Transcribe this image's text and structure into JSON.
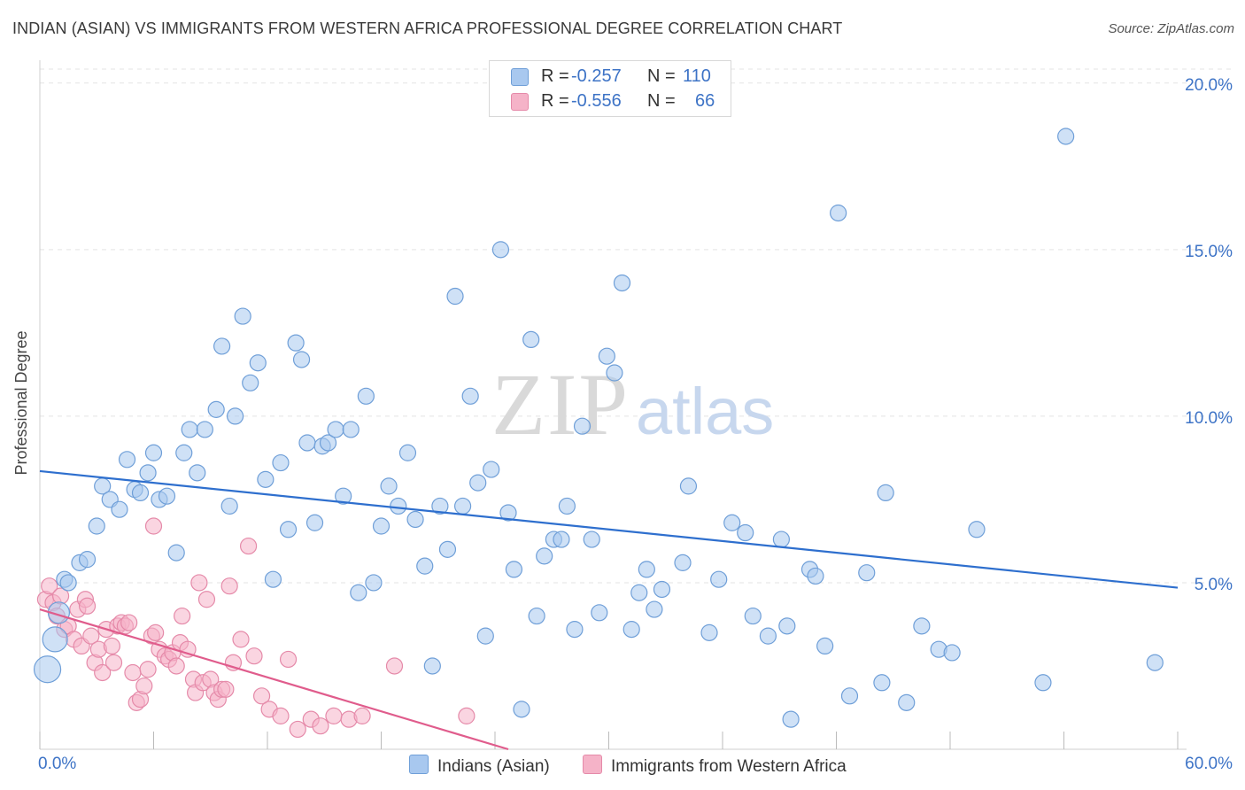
{
  "header": {
    "title": "INDIAN (ASIAN) VS IMMIGRANTS FROM WESTERN AFRICA PROFESSIONAL DEGREE CORRELATION CHART",
    "source": "Source: ZipAtlas.com"
  },
  "watermark": "ZIPatlas",
  "legend": {
    "rows": [
      {
        "r_label": "R =",
        "r_value": "-0.257",
        "n_label": "N =",
        "n_value": "110",
        "color": "#a8c8ef"
      },
      {
        "r_label": "R =",
        "r_value": "-0.556",
        "n_label": "N =",
        "n_value": "66",
        "color": "#f5b3c8"
      }
    ]
  },
  "bottom_legend": [
    "Indians (Asian)",
    "Immigrants from Western Africa"
  ],
  "colors": {
    "blue_fill": "#a8c8ef",
    "blue_stroke": "#6f9fd8",
    "blue_line": "#2e6fce",
    "pink_fill": "#f5b3c8",
    "pink_stroke": "#e58aa9",
    "pink_line": "#e05c8c",
    "tick_text": "#3d73c6",
    "grid": "#e3e3e3"
  },
  "chart_data": {
    "type": "scatter",
    "title": "INDIAN (ASIAN) VS IMMIGRANTS FROM WESTERN AFRICA PROFESSIONAL DEGREE CORRELATION CHART",
    "xlabel": "",
    "ylabel": "Professional Degree",
    "xlim": [
      0,
      60
    ],
    "ylim": [
      0,
      20.5
    ],
    "x_tick_labels": [
      "0.0%",
      "60.0%"
    ],
    "y_ticks": [
      5,
      10,
      15,
      20
    ],
    "y_tick_labels": [
      "5.0%",
      "10.0%",
      "15.0%",
      "20.0%"
    ],
    "grid": true,
    "legend_position": "top-center",
    "series": [
      {
        "name": "Indians (Asian)",
        "r": -0.257,
        "n": 110,
        "trend": {
          "x": [
            0,
            60
          ],
          "y": [
            8.35,
            4.85
          ]
        },
        "points": [
          [
            0.4,
            2.4
          ],
          [
            0.8,
            3.3
          ],
          [
            1.0,
            4.1
          ],
          [
            1.3,
            5.1
          ],
          [
            1.5,
            5.0
          ],
          [
            2.1,
            5.6
          ],
          [
            2.5,
            5.7
          ],
          [
            3.0,
            6.7
          ],
          [
            3.3,
            7.9
          ],
          [
            3.7,
            7.5
          ],
          [
            4.2,
            7.2
          ],
          [
            4.6,
            8.7
          ],
          [
            5.0,
            7.8
          ],
          [
            5.3,
            7.7
          ],
          [
            5.7,
            8.3
          ],
          [
            6.0,
            8.9
          ],
          [
            6.3,
            7.5
          ],
          [
            6.7,
            7.6
          ],
          [
            7.2,
            5.9
          ],
          [
            7.6,
            8.9
          ],
          [
            7.9,
            9.6
          ],
          [
            8.3,
            8.3
          ],
          [
            8.7,
            9.6
          ],
          [
            9.3,
            10.2
          ],
          [
            9.6,
            12.1
          ],
          [
            10.0,
            7.3
          ],
          [
            10.3,
            10.0
          ],
          [
            10.7,
            13.0
          ],
          [
            11.1,
            11.0
          ],
          [
            11.5,
            11.6
          ],
          [
            11.9,
            8.1
          ],
          [
            12.3,
            5.1
          ],
          [
            12.7,
            8.6
          ],
          [
            13.1,
            6.6
          ],
          [
            13.5,
            12.2
          ],
          [
            13.8,
            11.7
          ],
          [
            14.1,
            9.2
          ],
          [
            14.5,
            6.8
          ],
          [
            14.9,
            9.1
          ],
          [
            15.2,
            9.2
          ],
          [
            15.6,
            9.6
          ],
          [
            16.0,
            7.6
          ],
          [
            16.4,
            9.6
          ],
          [
            16.8,
            4.7
          ],
          [
            17.2,
            10.6
          ],
          [
            17.6,
            5.0
          ],
          [
            18.0,
            6.7
          ],
          [
            18.4,
            7.9
          ],
          [
            18.9,
            7.3
          ],
          [
            19.4,
            8.9
          ],
          [
            19.8,
            6.9
          ],
          [
            20.3,
            5.5
          ],
          [
            20.7,
            2.5
          ],
          [
            21.1,
            7.3
          ],
          [
            21.5,
            6.0
          ],
          [
            21.9,
            13.6
          ],
          [
            22.3,
            7.3
          ],
          [
            22.7,
            10.6
          ],
          [
            23.1,
            8.0
          ],
          [
            23.5,
            3.4
          ],
          [
            23.8,
            8.4
          ],
          [
            24.3,
            15.0
          ],
          [
            24.7,
            7.1
          ],
          [
            25.0,
            5.4
          ],
          [
            25.4,
            1.2
          ],
          [
            25.9,
            12.3
          ],
          [
            26.2,
            4.0
          ],
          [
            26.6,
            5.8
          ],
          [
            27.1,
            6.3
          ],
          [
            27.5,
            6.3
          ],
          [
            27.8,
            7.3
          ],
          [
            28.2,
            3.6
          ],
          [
            28.6,
            9.7
          ],
          [
            29.1,
            6.3
          ],
          [
            29.5,
            4.1
          ],
          [
            29.9,
            11.8
          ],
          [
            30.3,
            11.3
          ],
          [
            30.7,
            14.0
          ],
          [
            31.2,
            3.6
          ],
          [
            31.6,
            4.7
          ],
          [
            32.0,
            5.4
          ],
          [
            32.4,
            4.2
          ],
          [
            32.8,
            4.8
          ],
          [
            33.9,
            5.6
          ],
          [
            34.2,
            7.9
          ],
          [
            35.3,
            3.5
          ],
          [
            35.8,
            5.1
          ],
          [
            36.5,
            6.8
          ],
          [
            37.2,
            6.5
          ],
          [
            37.6,
            4.0
          ],
          [
            38.4,
            3.4
          ],
          [
            39.1,
            6.3
          ],
          [
            39.4,
            3.7
          ],
          [
            39.6,
            0.9
          ],
          [
            40.6,
            5.4
          ],
          [
            40.9,
            5.2
          ],
          [
            41.4,
            3.1
          ],
          [
            42.1,
            16.1
          ],
          [
            42.7,
            1.6
          ],
          [
            43.6,
            5.3
          ],
          [
            44.4,
            2.0
          ],
          [
            44.6,
            7.7
          ],
          [
            45.7,
            1.4
          ],
          [
            46.5,
            3.7
          ],
          [
            47.4,
            3.0
          ],
          [
            48.1,
            2.9
          ],
          [
            49.4,
            6.6
          ],
          [
            52.9,
            2.0
          ],
          [
            54.1,
            18.4
          ],
          [
            58.8,
            2.6
          ]
        ]
      },
      {
        "name": "Immigrants from Western Africa",
        "r": -0.556,
        "n": 66,
        "trend": {
          "x": [
            0,
            24.7
          ],
          "y": [
            4.2,
            0
          ]
        },
        "points": [
          [
            0.3,
            4.5
          ],
          [
            0.5,
            4.9
          ],
          [
            0.7,
            4.4
          ],
          [
            0.9,
            4.0
          ],
          [
            1.1,
            4.6
          ],
          [
            1.3,
            3.6
          ],
          [
            1.5,
            3.7
          ],
          [
            1.8,
            3.3
          ],
          [
            2.0,
            4.2
          ],
          [
            2.2,
            3.1
          ],
          [
            2.4,
            4.5
          ],
          [
            2.5,
            4.3
          ],
          [
            2.7,
            3.4
          ],
          [
            2.9,
            2.6
          ],
          [
            3.1,
            3.0
          ],
          [
            3.3,
            2.3
          ],
          [
            3.5,
            3.6
          ],
          [
            3.8,
            3.1
          ],
          [
            3.9,
            2.6
          ],
          [
            4.1,
            3.7
          ],
          [
            4.3,
            3.8
          ],
          [
            4.5,
            3.7
          ],
          [
            4.7,
            3.8
          ],
          [
            4.9,
            2.3
          ],
          [
            5.1,
            1.4
          ],
          [
            5.3,
            1.5
          ],
          [
            5.5,
            1.9
          ],
          [
            5.7,
            2.4
          ],
          [
            5.9,
            3.4
          ],
          [
            6.1,
            3.5
          ],
          [
            6.3,
            3.0
          ],
          [
            6.6,
            2.8
          ],
          [
            6.8,
            2.7
          ],
          [
            7.0,
            2.9
          ],
          [
            7.2,
            2.5
          ],
          [
            7.4,
            3.2
          ],
          [
            7.5,
            4.0
          ],
          [
            7.8,
            3.0
          ],
          [
            8.1,
            2.1
          ],
          [
            8.2,
            1.7
          ],
          [
            8.4,
            5.0
          ],
          [
            8.6,
            2.0
          ],
          [
            8.8,
            4.5
          ],
          [
            9.0,
            2.1
          ],
          [
            9.2,
            1.7
          ],
          [
            9.4,
            1.5
          ],
          [
            9.6,
            1.8
          ],
          [
            9.8,
            1.8
          ],
          [
            10.0,
            4.9
          ],
          [
            10.2,
            2.6
          ],
          [
            10.6,
            3.3
          ],
          [
            11.0,
            6.1
          ],
          [
            11.3,
            2.8
          ],
          [
            11.7,
            1.6
          ],
          [
            12.1,
            1.2
          ],
          [
            12.7,
            1.0
          ],
          [
            13.1,
            2.7
          ],
          [
            13.6,
            0.6
          ],
          [
            14.3,
            0.9
          ],
          [
            14.8,
            0.7
          ],
          [
            15.5,
            1.0
          ],
          [
            16.3,
            0.9
          ],
          [
            17.0,
            1.0
          ],
          [
            18.7,
            2.5
          ],
          [
            22.5,
            1.0
          ],
          [
            6.0,
            6.7
          ]
        ]
      }
    ]
  }
}
